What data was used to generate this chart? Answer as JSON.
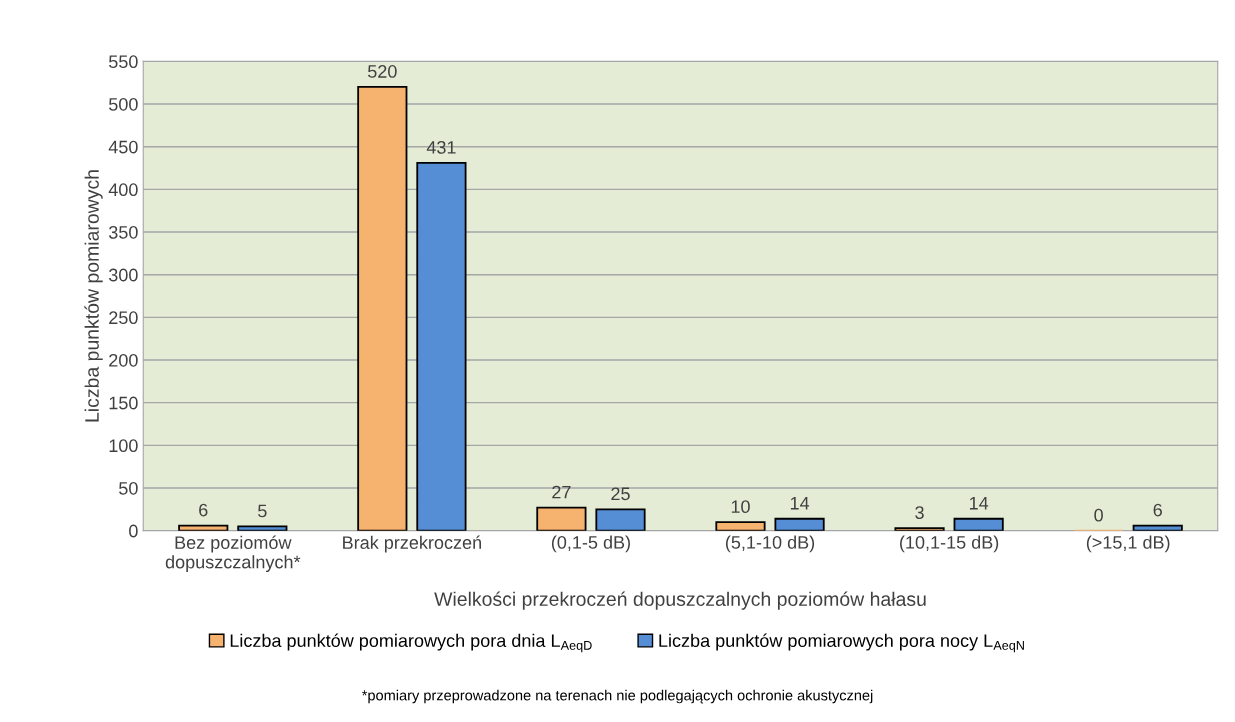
{
  "chart_data": {
    "type": "bar",
    "xlabel": "Wielkości przekroczeń dopuszczalnych poziomów hałasu",
    "ylabel": "Liczba punktów pomiarowych",
    "categories": [
      "Bez poziomów\ndopuszczalnych*",
      "Brak przekroczeń",
      "(0,1-5 dB)",
      "(5,1-10 dB)",
      "(10,1-15 dB)",
      "(>15,1 dB)"
    ],
    "series": [
      {
        "name": "Liczba punktów pomiarowych pora dnia L$_{AeqD}$",
        "color": "#f6b26f",
        "values": [
          6,
          520,
          27,
          10,
          3,
          0
        ]
      },
      {
        "name": "Liczba punktów pomiarowych pora nocy L$_{AeqN}$",
        "color": "#558ed5",
        "values": [
          5,
          431,
          25,
          14,
          14,
          6
        ]
      }
    ],
    "ylim": [
      0,
      550
    ],
    "yticks": [
      0,
      50,
      100,
      150,
      200,
      250,
      300,
      350,
      400,
      450,
      500,
      550
    ],
    "grid": "y",
    "legend": "bottom",
    "data_labels": true,
    "annotations": [
      "*pomiary przeprowadzone na terenach nie podlegających ochronie akustycznej"
    ]
  }
}
